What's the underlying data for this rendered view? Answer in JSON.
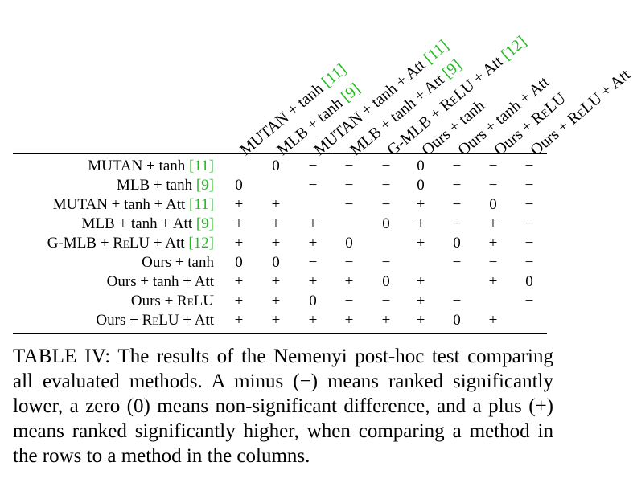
{
  "table": {
    "columns": [
      {
        "label": "MUTAN + tanh ",
        "ref": "[11]"
      },
      {
        "label": "MLB + tanh ",
        "ref": "[9]"
      },
      {
        "label": "MUTAN + tanh + Att ",
        "ref": "[11]"
      },
      {
        "label": "MLB + tanh + Att ",
        "ref": "[9]"
      },
      {
        "label": "G-MLB + ReLU + Att ",
        "ref": "[12]"
      },
      {
        "label": "Ours + tanh",
        "ref": ""
      },
      {
        "label": "Ours + tanh + Att",
        "ref": ""
      },
      {
        "label": "Ours + ReLU",
        "ref": ""
      },
      {
        "label": "Ours + ReLU + Att",
        "ref": ""
      }
    ],
    "rows": [
      {
        "label": "MUTAN + tanh ",
        "ref": "[11]",
        "cells": [
          "",
          "0",
          "−",
          "−",
          "−",
          "0",
          "−",
          "−",
          "−"
        ]
      },
      {
        "label": "MLB + tanh ",
        "ref": "[9]",
        "cells": [
          "0",
          "",
          "−",
          "−",
          "−",
          "0",
          "−",
          "−",
          "−"
        ]
      },
      {
        "label": "MUTAN + tanh + Att ",
        "ref": "[11]",
        "cells": [
          "+",
          "+",
          "",
          "−",
          "−",
          "+",
          "−",
          "0",
          "−"
        ]
      },
      {
        "label": "MLB + tanh + Att ",
        "ref": "[9]",
        "cells": [
          "+",
          "+",
          "+",
          "",
          "0",
          "+",
          "−",
          "+",
          "−"
        ]
      },
      {
        "label": "G-MLB + ReLU + Att ",
        "ref": "[12]",
        "cells": [
          "+",
          "+",
          "+",
          "0",
          "",
          "+",
          "0",
          "+",
          "−"
        ]
      },
      {
        "label": "Ours + tanh",
        "ref": "",
        "cells": [
          "0",
          "0",
          "−",
          "−",
          "−",
          "",
          "−",
          "−",
          "−"
        ]
      },
      {
        "label": "Ours + tanh + Att",
        "ref": "",
        "cells": [
          "+",
          "+",
          "+",
          "+",
          "0",
          "+",
          "",
          "+",
          "0"
        ]
      },
      {
        "label": "Ours + ReLU",
        "ref": "",
        "cells": [
          "+",
          "+",
          "0",
          "−",
          "−",
          "+",
          "−",
          "",
          "−"
        ]
      },
      {
        "label": "Ours + ReLU + Att",
        "ref": "",
        "cells": [
          "+",
          "+",
          "+",
          "+",
          "+",
          "+",
          "0",
          "+",
          ""
        ]
      }
    ]
  },
  "caption": {
    "label": "TABLE IV:",
    "text": "The results of the Nemenyi post-hoc test comparing all evaluated methods. A minus (−) means ranked significantly lower, a zero (0) means non-significant difference, and a plus (+) means ranked significantly higher, when comparing a method in the rows to a method in the columns."
  }
}
